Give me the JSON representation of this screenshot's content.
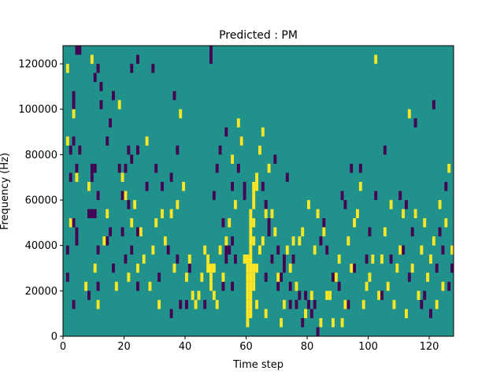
{
  "chart_data": {
    "type": "heatmap",
    "title": "Predicted : PM",
    "xlabel": "Time step",
    "ylabel": "Frequency (Hz)",
    "xlim": [
      0,
      128
    ],
    "ylim": [
      0,
      128000
    ],
    "xticks": [
      0,
      20,
      40,
      60,
      80,
      100,
      120
    ],
    "yticks": [
      0,
      20000,
      40000,
      60000,
      80000,
      100000,
      120000
    ],
    "xtick_labels": [
      "0",
      "20",
      "40",
      "60",
      "80",
      "100",
      "120"
    ],
    "ytick_labels": [
      "0",
      "20000",
      "40000",
      "60000",
      "80000",
      "100000",
      "120000"
    ],
    "grid": false,
    "colormap": "viridis",
    "value_levels": [
      -1,
      0,
      1
    ],
    "level_colors": {
      "-1": "#440154",
      "0": "#21918c",
      "1": "#fde725"
    },
    "background_value": 0,
    "bin_size": {
      "time_step": 1,
      "frequency_hz": 4000
    },
    "cells_value_neg1": [
      [
        1,
        6
      ],
      [
        1,
        9
      ],
      [
        2,
        17
      ],
      [
        2,
        20
      ],
      [
        3,
        3
      ],
      [
        3,
        12
      ],
      [
        3,
        21
      ],
      [
        3,
        25
      ],
      [
        3,
        26
      ],
      [
        4,
        10
      ],
      [
        4,
        11
      ],
      [
        4,
        18
      ],
      [
        4,
        31
      ],
      [
        5,
        20
      ],
      [
        5,
        31
      ],
      [
        8,
        4
      ],
      [
        8,
        13
      ],
      [
        9,
        13
      ],
      [
        10,
        13
      ],
      [
        9,
        17
      ],
      [
        9,
        18
      ],
      [
        10,
        18
      ],
      [
        10,
        28
      ],
      [
        11,
        5
      ],
      [
        11,
        9
      ],
      [
        11,
        15
      ],
      [
        11,
        29
      ],
      [
        12,
        25
      ],
      [
        12,
        27
      ],
      [
        14,
        10
      ],
      [
        14,
        21
      ],
      [
        15,
        11
      ],
      [
        15,
        23
      ],
      [
        16,
        7
      ],
      [
        16,
        26
      ],
      [
        18,
        18
      ],
      [
        19,
        11
      ],
      [
        19,
        15
      ],
      [
        20,
        8
      ],
      [
        20,
        18
      ],
      [
        21,
        14
      ],
      [
        21,
        20
      ],
      [
        22,
        9
      ],
      [
        22,
        19
      ],
      [
        22,
        29
      ],
      [
        24,
        5
      ],
      [
        24,
        11
      ],
      [
        24,
        20
      ],
      [
        24,
        30
      ],
      [
        27,
        16
      ],
      [
        29,
        29
      ],
      [
        30,
        18
      ],
      [
        31,
        6
      ],
      [
        32,
        16
      ],
      [
        34,
        9
      ],
      [
        35,
        2
      ],
      [
        35,
        17
      ],
      [
        36,
        26
      ],
      [
        37,
        8
      ],
      [
        37,
        20
      ],
      [
        38,
        3
      ],
      [
        40,
        3
      ],
      [
        41,
        7
      ],
      [
        46,
        3
      ],
      [
        48,
        30
      ],
      [
        48,
        31
      ],
      [
        49,
        15
      ],
      [
        50,
        18
      ],
      [
        51,
        20
      ],
      [
        52,
        5
      ],
      [
        52,
        12
      ],
      [
        53,
        8
      ],
      [
        53,
        9
      ],
      [
        53,
        22
      ],
      [
        54,
        9
      ],
      [
        55,
        5
      ],
      [
        55,
        10
      ],
      [
        55,
        16
      ],
      [
        56,
        8
      ],
      [
        57,
        18
      ],
      [
        58,
        21
      ],
      [
        59,
        15
      ],
      [
        59,
        16
      ],
      [
        60,
        6
      ],
      [
        65,
        16
      ],
      [
        66,
        6
      ],
      [
        66,
        14
      ],
      [
        67,
        11
      ],
      [
        67,
        12
      ],
      [
        68,
        8
      ],
      [
        69,
        19
      ],
      [
        70,
        5
      ],
      [
        70,
        9
      ],
      [
        71,
        6
      ],
      [
        72,
        7
      ],
      [
        72,
        8
      ],
      [
        73,
        17
      ],
      [
        74,
        3
      ],
      [
        74,
        5
      ],
      [
        75,
        8
      ],
      [
        76,
        3
      ],
      [
        77,
        4
      ],
      [
        78,
        1
      ],
      [
        79,
        4
      ],
      [
        80,
        3
      ],
      [
        81,
        2
      ],
      [
        82,
        3
      ],
      [
        83,
        0
      ],
      [
        84,
        10
      ],
      [
        85,
        12
      ],
      [
        86,
        9
      ],
      [
        88,
        6
      ],
      [
        90,
        5
      ],
      [
        91,
        15
      ],
      [
        92,
        14
      ],
      [
        93,
        3
      ],
      [
        94,
        18
      ],
      [
        95,
        7
      ],
      [
        97,
        18
      ],
      [
        99,
        8
      ],
      [
        100,
        11
      ],
      [
        102,
        15
      ],
      [
        104,
        4
      ],
      [
        105,
        20
      ],
      [
        107,
        8
      ],
      [
        110,
        15
      ],
      [
        111,
        9
      ],
      [
        112,
        14
      ],
      [
        113,
        6
      ],
      [
        114,
        11
      ],
      [
        115,
        23
      ],
      [
        117,
        3
      ],
      [
        118,
        4
      ],
      [
        120,
        2
      ],
      [
        121,
        25
      ],
      [
        122,
        7
      ],
      [
        123,
        11
      ],
      [
        124,
        9
      ],
      [
        125,
        16
      ],
      [
        126,
        5
      ],
      [
        127,
        7
      ]
    ],
    "cells_value_pos1": [
      [
        1,
        21
      ],
      [
        1,
        29
      ],
      [
        2,
        12
      ],
      [
        3,
        24
      ],
      [
        4,
        17
      ],
      [
        7,
        5
      ],
      [
        8,
        16
      ],
      [
        9,
        30
      ],
      [
        10,
        7
      ],
      [
        11,
        3
      ],
      [
        13,
        10
      ],
      [
        14,
        13
      ],
      [
        17,
        5
      ],
      [
        18,
        25
      ],
      [
        19,
        17
      ],
      [
        20,
        15
      ],
      [
        21,
        6
      ],
      [
        22,
        12
      ],
      [
        23,
        14
      ],
      [
        24,
        7
      ],
      [
        25,
        11
      ],
      [
        26,
        8
      ],
      [
        27,
        21
      ],
      [
        28,
        5
      ],
      [
        29,
        9
      ],
      [
        30,
        12
      ],
      [
        31,
        3
      ],
      [
        32,
        13
      ],
      [
        33,
        10
      ],
      [
        35,
        13
      ],
      [
        36,
        7
      ],
      [
        37,
        14
      ],
      [
        38,
        24
      ],
      [
        39,
        16
      ],
      [
        40,
        6
      ],
      [
        41,
        8
      ],
      [
        42,
        4
      ],
      [
        43,
        3
      ],
      [
        44,
        4
      ],
      [
        45,
        6
      ],
      [
        46,
        9
      ],
      [
        47,
        7
      ],
      [
        47,
        8
      ],
      [
        48,
        5
      ],
      [
        48,
        6
      ],
      [
        48,
        7
      ],
      [
        49,
        4
      ],
      [
        49,
        7
      ],
      [
        50,
        3
      ],
      [
        51,
        9
      ],
      [
        52,
        6
      ],
      [
        53,
        10
      ],
      [
        54,
        12
      ],
      [
        55,
        19
      ],
      [
        56,
        14
      ],
      [
        57,
        23
      ],
      [
        58,
        21
      ],
      [
        59,
        8
      ],
      [
        60,
        1
      ],
      [
        60,
        2
      ],
      [
        60,
        3
      ],
      [
        60,
        4
      ],
      [
        60,
        5
      ],
      [
        60,
        6
      ],
      [
        60,
        7
      ],
      [
        60,
        8
      ],
      [
        61,
        2
      ],
      [
        61,
        3
      ],
      [
        61,
        4
      ],
      [
        61,
        5
      ],
      [
        61,
        6
      ],
      [
        61,
        7
      ],
      [
        61,
        8
      ],
      [
        61,
        9
      ],
      [
        61,
        10
      ],
      [
        61,
        11
      ],
      [
        61,
        12
      ],
      [
        61,
        13
      ],
      [
        62,
        5
      ],
      [
        62,
        6
      ],
      [
        62,
        7
      ],
      [
        62,
        10
      ],
      [
        62,
        12
      ],
      [
        62,
        14
      ],
      [
        62,
        15
      ],
      [
        62,
        16
      ],
      [
        63,
        3
      ],
      [
        63,
        7
      ],
      [
        63,
        16
      ],
      [
        63,
        17
      ],
      [
        64,
        9
      ],
      [
        64,
        20
      ],
      [
        65,
        10
      ],
      [
        65,
        22
      ],
      [
        66,
        2
      ],
      [
        66,
        13
      ],
      [
        67,
        18
      ],
      [
        68,
        13
      ],
      [
        69,
        11
      ],
      [
        70,
        6
      ],
      [
        71,
        1
      ],
      [
        72,
        3
      ],
      [
        73,
        9
      ],
      [
        74,
        7
      ],
      [
        75,
        10
      ],
      [
        76,
        5
      ],
      [
        77,
        10
      ],
      [
        78,
        11
      ],
      [
        79,
        2
      ],
      [
        80,
        14
      ],
      [
        81,
        4
      ],
      [
        82,
        9
      ],
      [
        83,
        13
      ],
      [
        84,
        1
      ],
      [
        85,
        11
      ],
      [
        86,
        4
      ],
      [
        87,
        4
      ],
      [
        88,
        1
      ],
      [
        89,
        6
      ],
      [
        90,
        8
      ],
      [
        91,
        1
      ],
      [
        92,
        3
      ],
      [
        93,
        10
      ],
      [
        94,
        7
      ],
      [
        95,
        12
      ],
      [
        96,
        13
      ],
      [
        97,
        16
      ],
      [
        98,
        3
      ],
      [
        99,
        5
      ],
      [
        100,
        6
      ],
      [
        101,
        8
      ],
      [
        102,
        30
      ],
      [
        103,
        4
      ],
      [
        104,
        8
      ],
      [
        105,
        11
      ],
      [
        106,
        5
      ],
      [
        107,
        14
      ],
      [
        108,
        3
      ],
      [
        109,
        7
      ],
      [
        110,
        9
      ],
      [
        111,
        13
      ],
      [
        112,
        2
      ],
      [
        113,
        24
      ],
      [
        114,
        7
      ],
      [
        115,
        13
      ],
      [
        116,
        4
      ],
      [
        117,
        9
      ],
      [
        118,
        12
      ],
      [
        119,
        6
      ],
      [
        120,
        8
      ],
      [
        121,
        10
      ],
      [
        122,
        3
      ],
      [
        123,
        14
      ],
      [
        124,
        5
      ],
      [
        125,
        12
      ],
      [
        126,
        18
      ],
      [
        127,
        9
      ]
    ]
  }
}
